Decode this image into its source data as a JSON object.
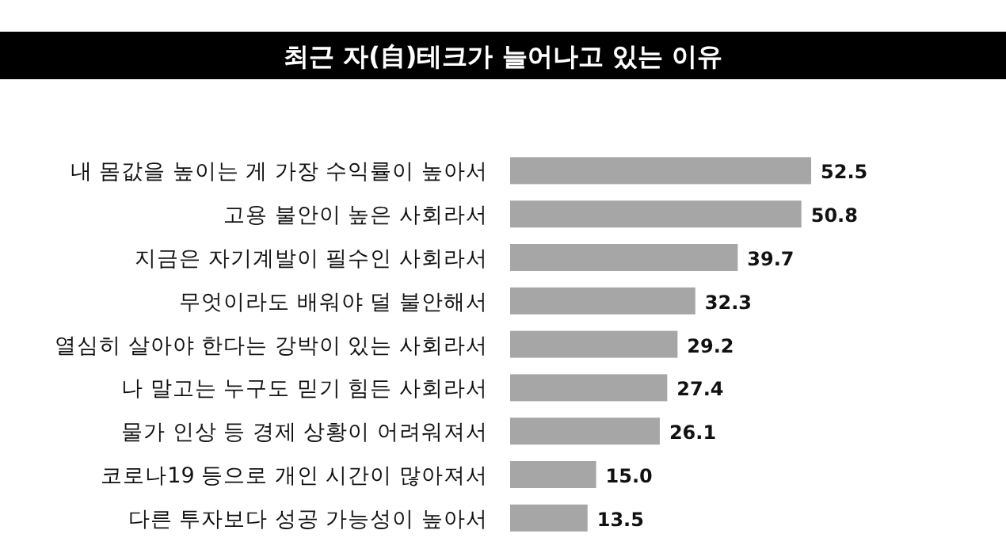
{
  "chart_data": {
    "type": "bar",
    "orientation": "horizontal",
    "title": "최근 자(自)테크가 늘어나고 있는 이유",
    "categories": [
      "내 몸값을 높이는 게 가장 수익률이 높아서",
      "고용 불안이 높은 사회라서",
      "지금은 자기계발이 필수인 사회라서",
      "무엇이라도 배워야 덜 불안해서",
      "열심히 살아야 한다는 강박이 있는 사회라서",
      "나 말고는 누구도 믿기 힘든 사회라서",
      "물가 인상 등 경제 상황이 어려워져서",
      "코로나19 등으로 개인 시간이 많아져서",
      "다른 투자보다 성공 가능성이 높아서"
    ],
    "values": [
      52.5,
      50.8,
      39.7,
      32.3,
      29.2,
      27.4,
      26.1,
      15.0,
      13.5
    ],
    "value_labels": [
      "52.5",
      "50.8",
      "39.7",
      "32.3",
      "29.2",
      "27.4",
      "26.1",
      "15.0",
      "13.5"
    ],
    "color": "#a6a6a6"
  }
}
